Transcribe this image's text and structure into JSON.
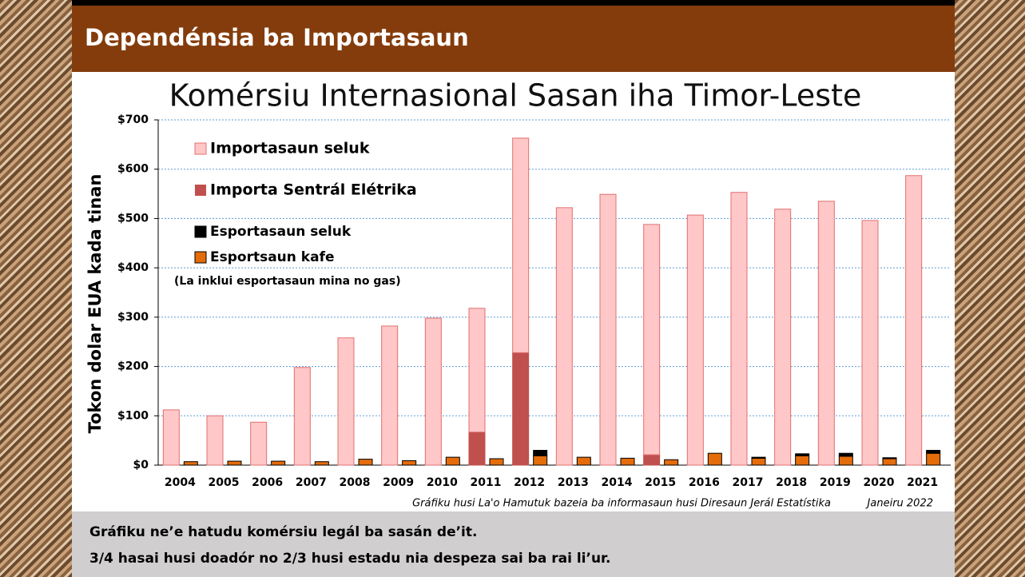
{
  "header": {
    "title": "Dependénsia ba Importasaun"
  },
  "chart_data": {
    "type": "bar",
    "title": "Komérsiu Internasional Sasan iha Timor-Leste",
    "y_label": "Tokon dolar EUA kada tinan",
    "categories": [
      "2004",
      "2005",
      "2006",
      "2007",
      "2008",
      "2009",
      "2010",
      "2011",
      "2012",
      "2013",
      "2014",
      "2015",
      "2016",
      "2017",
      "2018",
      "2019",
      "2020",
      "2021"
    ],
    "series": [
      {
        "name": "Importa Sentrál Elétrika",
        "color": "#c0504d",
        "stack": 0,
        "values": [
          0,
          0,
          0,
          0,
          0,
          0,
          0,
          67,
          228,
          0,
          0,
          21,
          0,
          0,
          0,
          0,
          0,
          0
        ]
      },
      {
        "name": "Importasaun seluk",
        "color": "#ffc7c7",
        "stack": 0,
        "values": [
          112,
          100,
          87,
          198,
          258,
          282,
          298,
          251,
          435,
          522,
          549,
          467,
          507,
          553,
          519,
          535,
          496,
          587
        ]
      },
      {
        "name": "Esportsaun kafe",
        "color": "#e46c0a",
        "stack": 1,
        "values": [
          7,
          8,
          8,
          7,
          12,
          9,
          16,
          13,
          19,
          16,
          14,
          11,
          24,
          14,
          19,
          18,
          13,
          24
        ]
      },
      {
        "name": "Esportasaun seluk",
        "color": "#000000",
        "stack": 1,
        "values": [
          0,
          0,
          0,
          0,
          0,
          0,
          0,
          0,
          11,
          0,
          0,
          0,
          0,
          2,
          4,
          6,
          2,
          6
        ]
      }
    ],
    "legend_note": "(La inklui esportasaun mina no gas)",
    "ylim": [
      0,
      700
    ],
    "yticks": [
      {
        "value": 0,
        "label": "$0"
      },
      {
        "value": 100,
        "label": "$100"
      },
      {
        "value": 200,
        "label": "$200"
      },
      {
        "value": 300,
        "label": "$300"
      },
      {
        "value": 400,
        "label": "$400"
      },
      {
        "value": 500,
        "label": "$500"
      },
      {
        "value": 600,
        "label": "$600"
      },
      {
        "value": 700,
        "label": "$700"
      }
    ],
    "grid": true,
    "source": "Gráfiku husi La'o Hamutuk bazeia ba informasaun husi Diresaun Jerál Estatístika",
    "date": "Janeiru 2022"
  },
  "footer": {
    "lines": [
      "Gráfiku ne’e hatudu komérsiu legál ba sasán de’it.",
      "3/4 hasai husi doadór no 2/3 husi estadu nia despeza sai ba rai li’ur."
    ]
  }
}
